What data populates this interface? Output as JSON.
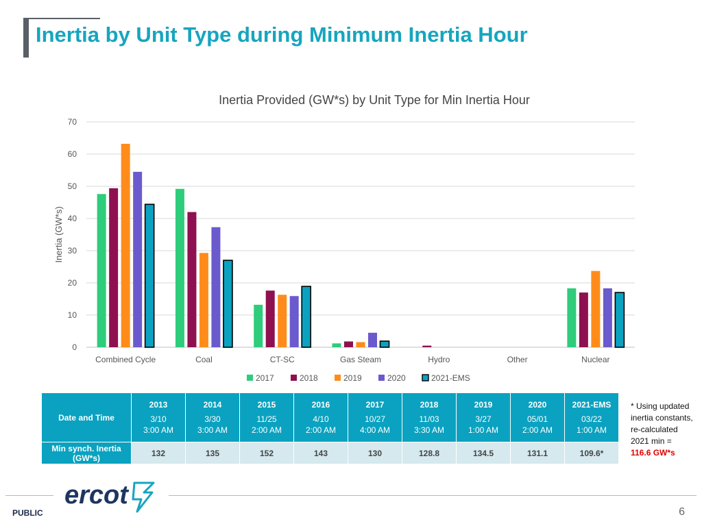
{
  "slide": {
    "title": "Inertia by Unit Type during Minimum Inertia Hour",
    "footer_label": "PUBLIC",
    "page_number": "6",
    "logo_text": "ercot"
  },
  "chart_data": {
    "type": "bar",
    "title": "Inertia Provided (GW*s) by Unit Type for Min Inertia Hour",
    "xlabel": "",
    "ylabel": "Inertia (GW*s)",
    "ylim": [
      0,
      70
    ],
    "yticks": [
      0,
      10,
      20,
      30,
      40,
      50,
      60,
      70
    ],
    "grid": true,
    "legend_position": "bottom",
    "categories": [
      "Combined Cycle",
      "Coal",
      "CT-SC",
      "Gas Steam",
      "Hydro",
      "Other",
      "Nuclear"
    ],
    "series": [
      {
        "name": "2017",
        "color": "#2ecc7b",
        "values": [
          47.6,
          49.2,
          13.2,
          1.2,
          0,
          0,
          18.3
        ]
      },
      {
        "name": "2018",
        "color": "#8e1050",
        "values": [
          49.4,
          42.0,
          17.6,
          1.8,
          0.5,
          0,
          17.0
        ]
      },
      {
        "name": "2019",
        "color": "#ff8c1a",
        "values": [
          63.2,
          29.3,
          16.3,
          1.6,
          0,
          0,
          23.7
        ]
      },
      {
        "name": "2020",
        "color": "#6a5acd",
        "values": [
          54.5,
          37.3,
          15.9,
          4.5,
          0,
          0,
          18.3
        ]
      },
      {
        "name": "2021-EMS",
        "color": "#0aa2c0",
        "outline": "#000000",
        "values": [
          44.4,
          27.0,
          18.9,
          1.9,
          0,
          0,
          17.0
        ]
      }
    ]
  },
  "table": {
    "row1_label": "Date and Time",
    "row2_label": "Min synch. Inertia (GW*s)",
    "columns": [
      {
        "year": "2013",
        "date": "3/10",
        "time": "3:00 AM",
        "value": "132"
      },
      {
        "year": "2014",
        "date": "3/30",
        "time": "3:00 AM",
        "value": "135"
      },
      {
        "year": "2015",
        "date": "11/25",
        "time": "2:00 AM",
        "value": "152"
      },
      {
        "year": "2016",
        "date": "4/10",
        "time": "2:00 AM",
        "value": "143"
      },
      {
        "year": "2017",
        "date": "10/27",
        "time": "4:00 AM",
        "value": "130"
      },
      {
        "year": "2018",
        "date": "11/03",
        "time": "3:30 AM",
        "value": "128.8"
      },
      {
        "year": "2019",
        "date": "3/27",
        "time": "1:00 AM",
        "value": "134.5"
      },
      {
        "year": "2020",
        "date": "05/01",
        "time": "2:00 AM",
        "value": "131.1"
      },
      {
        "year": "2021-EMS",
        "date": "03/22",
        "time": "1:00 AM",
        "value": "109.6*"
      }
    ]
  },
  "footnote": {
    "text": "* Using updated inertia constants, re-calculated 2021 min =",
    "highlight": "116.6 GW*s"
  }
}
